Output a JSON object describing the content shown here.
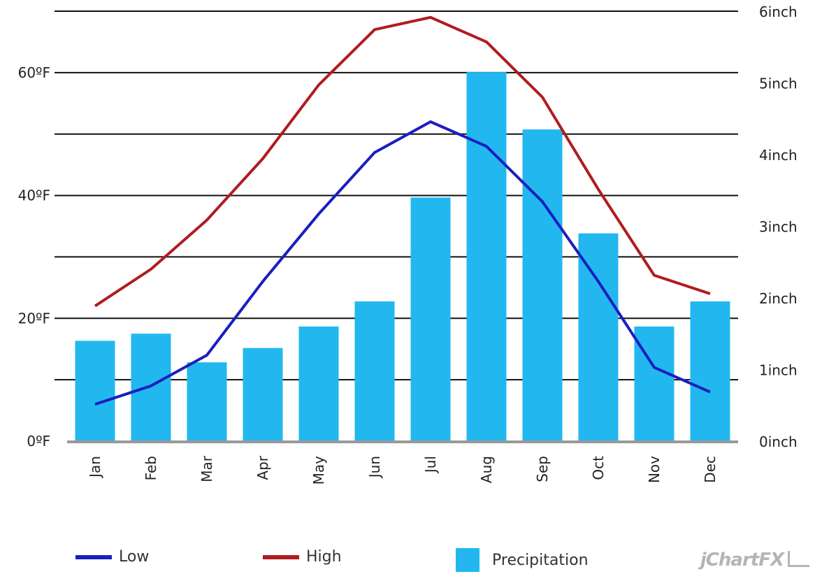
{
  "chart_data": {
    "type": "bar",
    "categories": [
      "Jan",
      "Feb",
      "Mar",
      "Apr",
      "May",
      "Jun",
      "Jul",
      "Aug",
      "Sep",
      "Oct",
      "Nov",
      "Dec"
    ],
    "series": [
      {
        "name": "Low",
        "kind": "line",
        "axis": "left",
        "color": "#1a1fbf",
        "values": [
          6,
          9,
          14,
          26,
          37,
          47,
          52,
          48,
          39,
          26,
          12,
          8
        ]
      },
      {
        "name": "High",
        "kind": "line",
        "axis": "left",
        "color": "#b01c1f",
        "values": [
          22,
          28,
          36,
          46,
          58,
          67,
          69,
          65,
          56,
          41,
          27,
          24
        ]
      },
      {
        "name": "Precipitation",
        "kind": "bar",
        "axis": "right",
        "color": "#22b8ef",
        "values": [
          1.4,
          1.5,
          1.1,
          1.3,
          1.6,
          1.95,
          3.4,
          5.15,
          4.35,
          2.9,
          1.6,
          1.95
        ]
      }
    ],
    "left_axis": {
      "ylim": [
        0,
        70
      ],
      "tick_values": [
        0,
        20,
        40,
        60
      ],
      "tick_labels": [
        "0ºF",
        "20ºF",
        "40ºF",
        "60ºF"
      ]
    },
    "right_axis": {
      "ylim": [
        0,
        6
      ],
      "tick_values": [
        0,
        1,
        2,
        3,
        4,
        5,
        6
      ],
      "tick_labels": [
        "0inch",
        "1inch",
        "2inch",
        "3inch",
        "4inch",
        "5inch",
        "6inch"
      ]
    },
    "gridlines": [
      10,
      20,
      30,
      40,
      50,
      60,
      70
    ],
    "grid": true,
    "legend_position": "bottom"
  },
  "branding": {
    "logo_text": "jChartFX"
  }
}
